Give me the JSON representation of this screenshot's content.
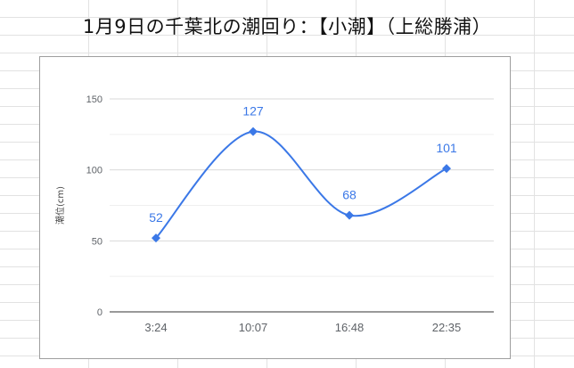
{
  "page": {
    "title": "1月9日の千葉北の潮回り：【小潮】（上総勝浦）"
  },
  "colors": {
    "series": "#3b78e7",
    "gridline": "#e0e0e0",
    "axis": "#333333",
    "tick_text": "#5f6368"
  },
  "chart_data": {
    "type": "line",
    "smooth": true,
    "marker": "diamond",
    "categories": [
      "3:24",
      "10:07",
      "16:48",
      "22:35"
    ],
    "series": [
      {
        "values": [
          52,
          127,
          68,
          101
        ]
      }
    ],
    "data_labels": [
      "52",
      "127",
      "68",
      "101"
    ],
    "yticks": [
      0,
      50,
      100,
      150
    ],
    "ylim": [
      0,
      150
    ],
    "ylabel": "潮位(cm)",
    "xlabel": "",
    "grid": true,
    "minor_grid": true,
    "legend": "none"
  }
}
